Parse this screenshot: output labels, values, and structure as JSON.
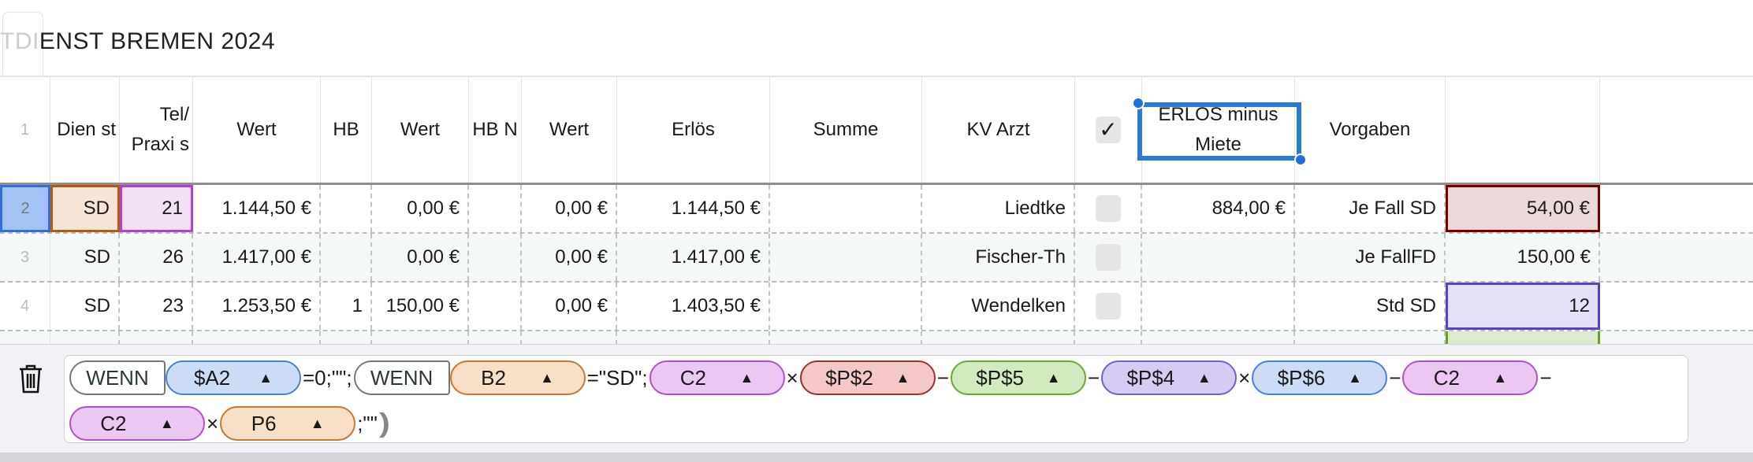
{
  "title": {
    "faded": "TDI",
    "main": "ENST BREMEN 2024"
  },
  "header": {
    "row_num": "1",
    "columns": [
      "Dien st",
      "Tel/ Praxi s",
      "Wert",
      "HB",
      "Wert",
      "HB N",
      "Wert",
      "Erlös",
      "Summe",
      "KV Arzt",
      "",
      "ERLÖS minus Miete",
      "Vorgaben",
      "",
      ""
    ],
    "checkbox_checked": true
  },
  "rows": [
    {
      "num": "2",
      "dienst": "SD",
      "tel": "21",
      "wert1": "1.144,50 €",
      "hb": "",
      "wert2": "0,00 €",
      "hbn": "",
      "wert3": "0,00 €",
      "erloes": "1.144,50 €",
      "summe": "",
      "kv_arzt": "Liedtke",
      "checked": false,
      "erloes_minus_miete": "884,00 €",
      "vorgaben": "Je Fall SD",
      "p": "54,00 €"
    },
    {
      "num": "3",
      "dienst": "SD",
      "tel": "26",
      "wert1": "1.417,00 €",
      "hb": "",
      "wert2": "0,00 €",
      "hbn": "",
      "wert3": "0,00 €",
      "erloes": "1.417,00 €",
      "summe": "",
      "kv_arzt": "Fischer-Th",
      "checked": false,
      "erloes_minus_miete": "",
      "vorgaben": "Je FallFD",
      "p": "150,00 €"
    },
    {
      "num": "4",
      "dienst": "SD",
      "tel": "23",
      "wert1": "1.253,50 €",
      "hb": "1",
      "wert2": "150,00 €",
      "hbn": "",
      "wert3": "0,00 €",
      "erloes": "1.403,50 €",
      "summe": "",
      "kv_arzt": "Wendelken",
      "checked": false,
      "erloes_minus_miete": "",
      "vorgaben": "Std SD",
      "p": "12"
    }
  ],
  "formula": {
    "tokens": [
      {
        "kind": "func",
        "text": "WENN"
      },
      {
        "kind": "ref",
        "text": "$A2",
        "color": "blue"
      },
      {
        "kind": "op",
        "text": "=0;\"\";"
      },
      {
        "kind": "func",
        "text": "WENN"
      },
      {
        "kind": "ref",
        "text": "B2",
        "color": "orange"
      },
      {
        "kind": "op",
        "text": "=\"SD\";"
      },
      {
        "kind": "ref",
        "text": "C2",
        "color": "pink"
      },
      {
        "kind": "op",
        "text": "×"
      },
      {
        "kind": "ref",
        "text": "$P$2",
        "color": "red"
      },
      {
        "kind": "op",
        "text": "−"
      },
      {
        "kind": "ref",
        "text": "$P$5",
        "color": "green"
      },
      {
        "kind": "op",
        "text": "−"
      },
      {
        "kind": "ref",
        "text": "$P$4",
        "color": "purple"
      },
      {
        "kind": "op",
        "text": "×"
      },
      {
        "kind": "ref",
        "text": "$P$6",
        "color": "blue"
      },
      {
        "kind": "op",
        "text": "−"
      },
      {
        "kind": "ref",
        "text": "C2",
        "color": "pink"
      },
      {
        "kind": "op",
        "text": "−"
      },
      {
        "kind": "ref",
        "text": "C2",
        "color": "pink"
      },
      {
        "kind": "op",
        "text": "×"
      },
      {
        "kind": "ref",
        "text": "P6",
        "color": "orange"
      },
      {
        "kind": "op",
        "text": ";\"\""
      },
      {
        "kind": "close",
        "text": ")))"
      }
    ],
    "colors": {
      "blue": {
        "bg": "#cddcf5",
        "border": "#4a7fe0"
      },
      "orange": {
        "bg": "#f8dfc8",
        "border": "#c87830"
      },
      "pink": {
        "bg": "#ebc8f2",
        "border": "#b050d0"
      },
      "red": {
        "bg": "#f4c8c8",
        "border": "#a03030"
      },
      "green": {
        "bg": "#d3e9c0",
        "border": "#6aaa30"
      },
      "purple": {
        "bg": "#d6ccf2",
        "border": "#7060d0"
      }
    },
    "trash_icon": "trash-icon",
    "token_arrow_icon": "triangle-up-icon"
  }
}
